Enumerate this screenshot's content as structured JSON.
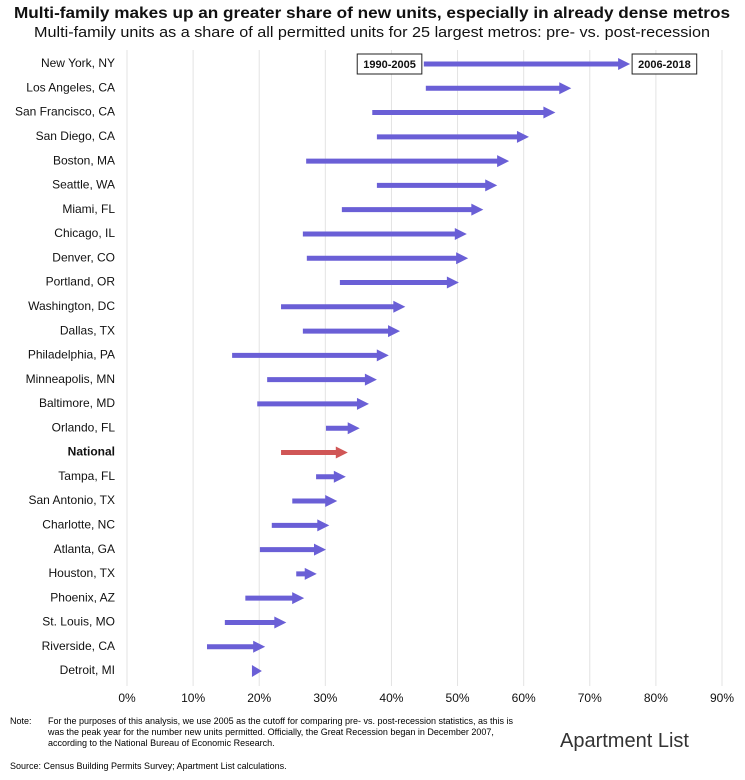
{
  "chart_data": {
    "type": "arrow",
    "title": "Multi-family makes up an greater share of new units, especially in already dense metros",
    "subtitle": "Multi-family units as a share of all permitted units for 25 largest metros: pre- vs. post-recession",
    "categories": [
      "New York, NY",
      "Los Angeles, CA",
      "San Francisco, CA",
      "San Diego, CA",
      "Boston, MA",
      "Seattle, WA",
      "Miami, FL",
      "Chicago, IL",
      "Denver, CO",
      "Portland, OR",
      "Washington, DC",
      "Dallas, TX",
      "Philadelphia, PA",
      "Minneapolis, MN",
      "Baltimore, MD",
      "Orlando, FL",
      "National",
      "Tampa, FL",
      "San Antonio, TX",
      "Charlotte, NC",
      "Atlanta, GA",
      "Houston, TX",
      "Phoenix, AZ",
      "St. Louis, MO",
      "Riverside, CA",
      "Detroit, MI"
    ],
    "series": [
      {
        "name": "1990-2005",
        "values": [
          44.9,
          45.2,
          37.1,
          37.8,
          27.1,
          37.8,
          32.5,
          26.6,
          27.2,
          32.2,
          23.3,
          26.6,
          15.9,
          21.2,
          19.7,
          30.1,
          23.3,
          28.6,
          25.0,
          21.9,
          20.1,
          25.6,
          17.9,
          14.8,
          12.1,
          18.9
        ]
      },
      {
        "name": "2006-2018",
        "values": [
          76.1,
          67.2,
          64.8,
          60.8,
          57.8,
          56.0,
          53.9,
          51.4,
          51.6,
          50.2,
          42.1,
          41.3,
          39.6,
          37.8,
          36.6,
          35.2,
          33.4,
          33.1,
          31.8,
          30.6,
          30.1,
          28.7,
          26.8,
          24.1,
          20.9,
          20.4
        ]
      }
    ],
    "color": "#6a5fd6",
    "highlight": {
      "category": "National",
      "color": "#d05656"
    },
    "xlim": [
      0,
      90
    ],
    "xticks": [
      {
        "value": 0,
        "label": "0%"
      },
      {
        "value": 10,
        "label": "10%"
      },
      {
        "value": 20,
        "label": "20%"
      },
      {
        "value": 30,
        "label": "30%"
      },
      {
        "value": 40,
        "label": "40%"
      },
      {
        "value": 50,
        "label": "50%"
      },
      {
        "value": 60,
        "label": "60%"
      },
      {
        "value": 70,
        "label": "70%"
      },
      {
        "value": 80,
        "label": "80%"
      },
      {
        "value": 90,
        "label": "90%"
      }
    ],
    "grid": true
  },
  "note_label": "Note:",
  "note": "For the purposes of this analysis, we use 2005 as the cutoff for comparing pre- vs. post-recession statistics, as this is was the peak year for the number new units permitted. Officially, the Great Recession began in December 2007, according to the National Bureau of Economic Research.",
  "source": "Source: Census Building Permits Survey; Apartment List calculations.",
  "logo": "Apartment List"
}
